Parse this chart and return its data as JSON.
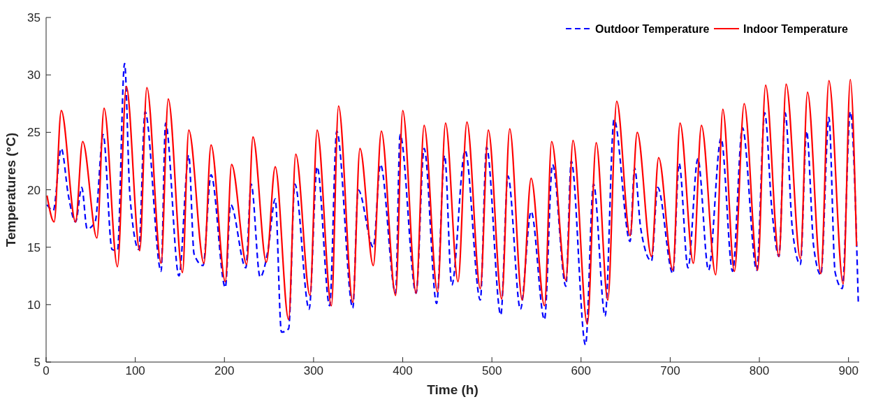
{
  "chart_data": {
    "type": "line",
    "xlabel": "Time (h)",
    "ylabel": "Temperatures (°C)",
    "xlim": [
      0,
      912
    ],
    "xticks": [
      0,
      100,
      200,
      300,
      400,
      500,
      600,
      700,
      800,
      900
    ],
    "ylim": [
      5,
      35
    ],
    "yticks": [
      5,
      10,
      15,
      20,
      25,
      30,
      35
    ],
    "grid": false,
    "legend": "top right",
    "marker": "none",
    "series": [
      {
        "name": "Outdoor Temperature",
        "color": "#0000ff",
        "line_style": "dashed",
        "x": [
          1,
          8,
          17,
          25,
          33,
          40,
          46,
          55,
          64,
          74,
          80,
          88,
          94,
          104,
          111,
          129,
          134,
          149,
          160,
          166,
          176,
          185,
          201,
          207,
          224,
          230,
          240,
          249,
          257,
          264,
          272,
          279,
          295,
          304,
          318,
          326,
          344,
          350,
          367,
          375,
          392,
          397,
          415,
          424,
          438,
          447,
          455,
          470,
          487,
          494,
          510,
          518,
          532,
          544,
          559,
          568,
          583,
          589,
          605,
          614,
          627,
          637,
          655,
          660,
          667,
          679,
          686,
          703,
          710,
          720,
          731,
          743,
          757,
          770,
          781,
          797,
          806,
          814,
          822,
          829,
          837,
          846,
          853,
          861,
          869,
          878,
          885,
          893,
          902,
          911
        ],
        "values": [
          18.7,
          18.2,
          23.6,
          19.5,
          17.2,
          20.2,
          16.6,
          17.2,
          24.8,
          14.8,
          14.7,
          31.0,
          19.5,
          14.8,
          26.8,
          12.9,
          25.8,
          12.5,
          23.0,
          14.4,
          13.4,
          21.3,
          11.5,
          18.7,
          13.2,
          20.5,
          12.4,
          14.8,
          19.2,
          7.6,
          7.9,
          20.5,
          9.6,
          22.0,
          9.9,
          25.1,
          9.7,
          20.0,
          15.0,
          22.2,
          11.0,
          24.8,
          11.0,
          23.6,
          10.1,
          23.0,
          11.7,
          23.4,
          10.4,
          23.7,
          9.1,
          21.2,
          9.6,
          18.1,
          8.7,
          22.2,
          11.6,
          22.5,
          6.5,
          20.5,
          9.0,
          26.1,
          15.5,
          21.9,
          16.6,
          13.8,
          20.2,
          12.7,
          22.3,
          13.2,
          22.7,
          13.0,
          24.5,
          12.9,
          25.4,
          13.0,
          26.7,
          18.3,
          14.2,
          26.7,
          16.6,
          13.5,
          25.1,
          15.0,
          12.6,
          26.3,
          12.8,
          11.4,
          26.8,
          10.1
        ]
      },
      {
        "name": "Indoor Temperature",
        "color": "#ff0000",
        "line_style": "solid",
        "x": [
          1,
          9,
          17,
          33,
          41,
          57,
          65,
          80,
          90,
          105,
          113,
          129,
          137,
          153,
          160,
          177,
          185,
          201,
          208,
          225,
          232,
          247,
          257,
          272,
          280,
          296,
          304,
          320,
          328,
          344,
          352,
          367,
          376,
          392,
          400,
          415,
          424,
          439,
          448,
          462,
          472,
          487,
          496,
          511,
          520,
          534,
          544,
          559,
          567,
          583,
          591,
          607,
          617,
          630,
          640,
          655,
          663,
          679,
          687,
          703,
          711,
          726,
          735,
          751,
          759,
          772,
          783,
          798,
          807,
          822,
          830,
          846,
          854,
          869,
          878,
          894,
          902,
          909
        ],
        "values": [
          19.5,
          17.2,
          26.9,
          17.2,
          24.2,
          15.8,
          27.1,
          13.3,
          29.0,
          14.7,
          28.9,
          13.6,
          27.9,
          12.8,
          25.2,
          13.6,
          23.9,
          12.0,
          22.2,
          13.5,
          24.6,
          13.7,
          22.0,
          8.7,
          23.1,
          10.8,
          25.2,
          9.9,
          27.3,
          10.2,
          23.6,
          13.4,
          25.1,
          10.8,
          26.9,
          11.0,
          25.6,
          11.1,
          25.8,
          12.0,
          25.9,
          11.4,
          25.2,
          10.5,
          25.3,
          10.4,
          21.0,
          9.9,
          24.2,
          12.1,
          24.3,
          8.3,
          24.1,
          10.4,
          27.7,
          16.0,
          25.0,
          14.2,
          22.8,
          13.0,
          25.8,
          13.6,
          25.6,
          12.6,
          27.0,
          12.9,
          27.5,
          13.0,
          29.1,
          14.2,
          29.2,
          14.0,
          28.5,
          12.7,
          29.5,
          11.8,
          29.6,
          15.1
        ]
      }
    ]
  }
}
